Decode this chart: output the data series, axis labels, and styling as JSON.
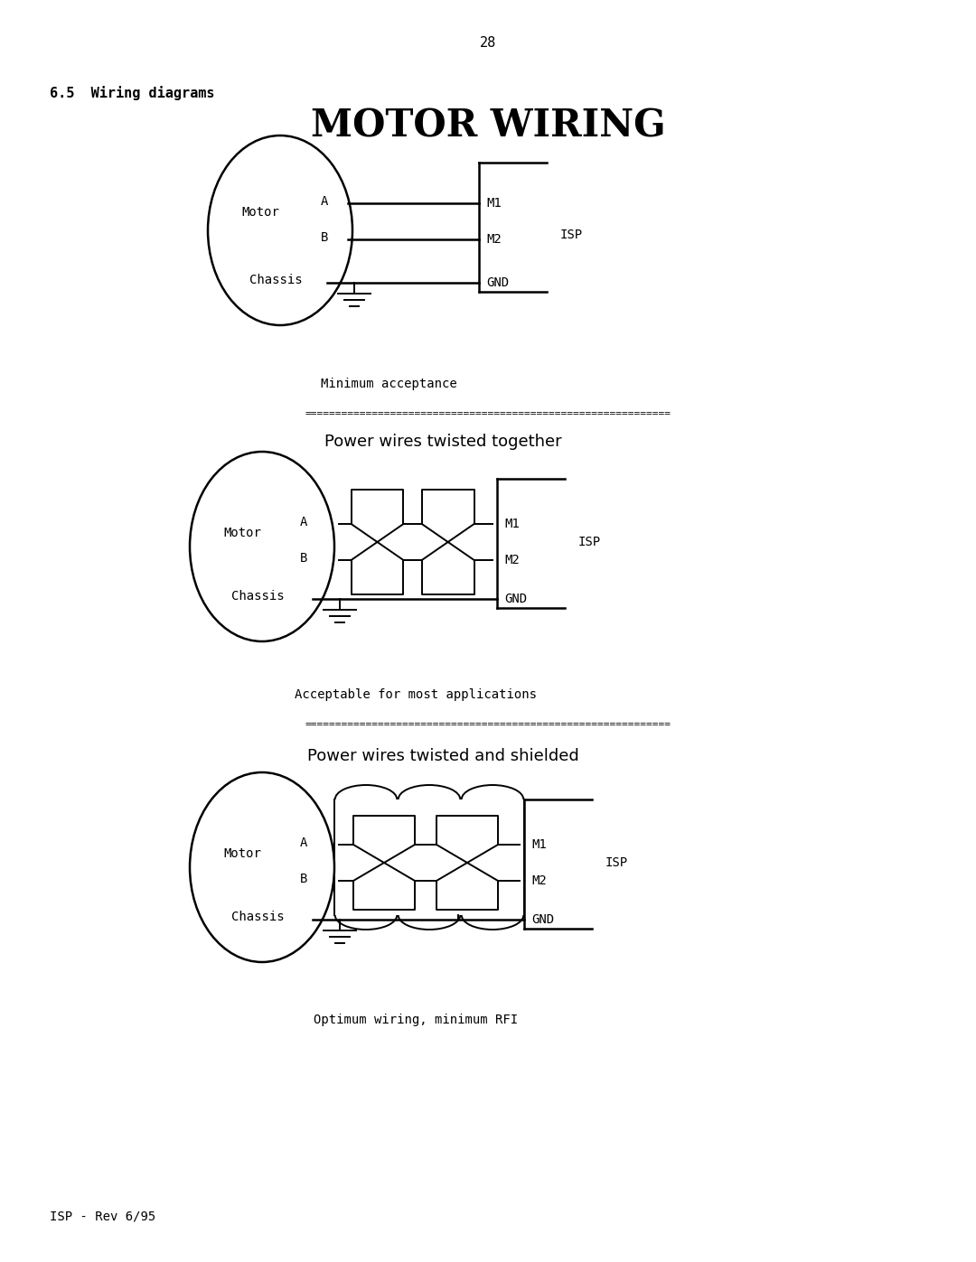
{
  "page_num": "28",
  "section_label": "6.5  Wiring diagrams",
  "main_title": "MOTOR WIRING",
  "footer": "ISP - Rev 6/95",
  "bg_color": "#ffffff",
  "text_color": "#000000",
  "diagram1": {
    "caption": "Minimum acceptance",
    "motor_label": "Motor",
    "chassis_label": "Chassis",
    "A_label": "A",
    "B_label": "B",
    "M1_label": "M1",
    "M2_label": "M2",
    "GND_label": "GND",
    "ISP_label": "ISP"
  },
  "diagram2": {
    "title": "Power wires twisted together",
    "caption": "Acceptable for most applications",
    "motor_label": "Motor",
    "chassis_label": "Chassis",
    "A_label": "A",
    "B_label": "B",
    "M1_label": "M1",
    "M2_label": "M2",
    "GND_label": "GND",
    "ISP_label": "ISP"
  },
  "diagram3": {
    "title": "Power wires twisted and shielded",
    "caption": "Optimum wiring, minimum RFI",
    "motor_label": "Motor",
    "chassis_label": "Chassis",
    "A_label": "A",
    "B_label": "B",
    "M1_label": "M1",
    "M2_label": "M2",
    "GND_label": "GND",
    "ISP_label": "ISP"
  }
}
